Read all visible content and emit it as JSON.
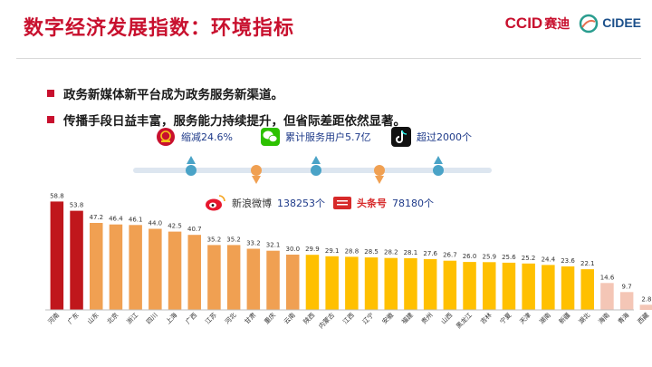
{
  "title": "数字经济发展指数：环境指标",
  "logos": {
    "ccid": "CCID",
    "ccid_cn": "赛迪",
    "cidee": "CIDEE"
  },
  "bullets": [
    "政务新媒体新平台成为政务服务新渠道。",
    "传播手段日益丰富，服务能力持续提升，但省际差距依然显著。"
  ],
  "stats": {
    "gov": {
      "icon": "national-emblem-icon",
      "text": "缩减24.6%"
    },
    "wechat": {
      "icon": "wechat-icon",
      "text": "累计服务用户5.7亿"
    },
    "tiktok": {
      "icon": "tiktok-icon",
      "text": "超过2000个"
    },
    "weibo": {
      "icon": "weibo-icon",
      "brand": "新浪微博",
      "text": "138253个"
    },
    "toutiao": {
      "icon": "toutiao-icon",
      "brand": "头条号",
      "text": "78180个"
    }
  },
  "colors": {
    "top": "#c0171c",
    "orange": "#f0a052",
    "yellow": "#ffc000",
    "pale": "#f4c6b6",
    "accent": "#c8102e"
  },
  "chart_data": {
    "type": "bar",
    "categories": [
      "河南",
      "广东",
      "山东",
      "北京",
      "浙江",
      "四川",
      "上海",
      "广西",
      "江苏",
      "河北",
      "甘肃",
      "重庆",
      "云南",
      "陕西",
      "内蒙古",
      "江西",
      "辽宁",
      "安徽",
      "福建",
      "贵州",
      "山西",
      "黑龙江",
      "吉林",
      "宁夏",
      "天津",
      "湖南",
      "新疆",
      "湖北",
      "海南",
      "青海",
      "西藏"
    ],
    "values": [
      58.8,
      53.8,
      47.2,
      46.4,
      46.1,
      44.0,
      42.5,
      40.7,
      35.2,
      35.2,
      33.2,
      32.1,
      30.0,
      29.9,
      29.1,
      28.8,
      28.5,
      28.2,
      28.1,
      27.6,
      26.7,
      26.0,
      25.9,
      25.6,
      25.2,
      24.4,
      23.6,
      22.1,
      14.6,
      9.7,
      2.8
    ],
    "bar_colors": [
      "#c0171c",
      "#c0171c",
      "#f0a052",
      "#f0a052",
      "#f0a052",
      "#f0a052",
      "#f0a052",
      "#f0a052",
      "#f0a052",
      "#f0a052",
      "#f0a052",
      "#f0a052",
      "#f0a052",
      "#ffc000",
      "#ffc000",
      "#ffc000",
      "#ffc000",
      "#ffc000",
      "#ffc000",
      "#ffc000",
      "#ffc000",
      "#ffc000",
      "#ffc000",
      "#ffc000",
      "#ffc000",
      "#ffc000",
      "#ffc000",
      "#ffc000",
      "#f4c6b6",
      "#f4c6b6",
      "#f4c6b6"
    ],
    "ylim": [
      0,
      60
    ],
    "grid": false,
    "title": "",
    "xlabel": "",
    "ylabel": ""
  }
}
